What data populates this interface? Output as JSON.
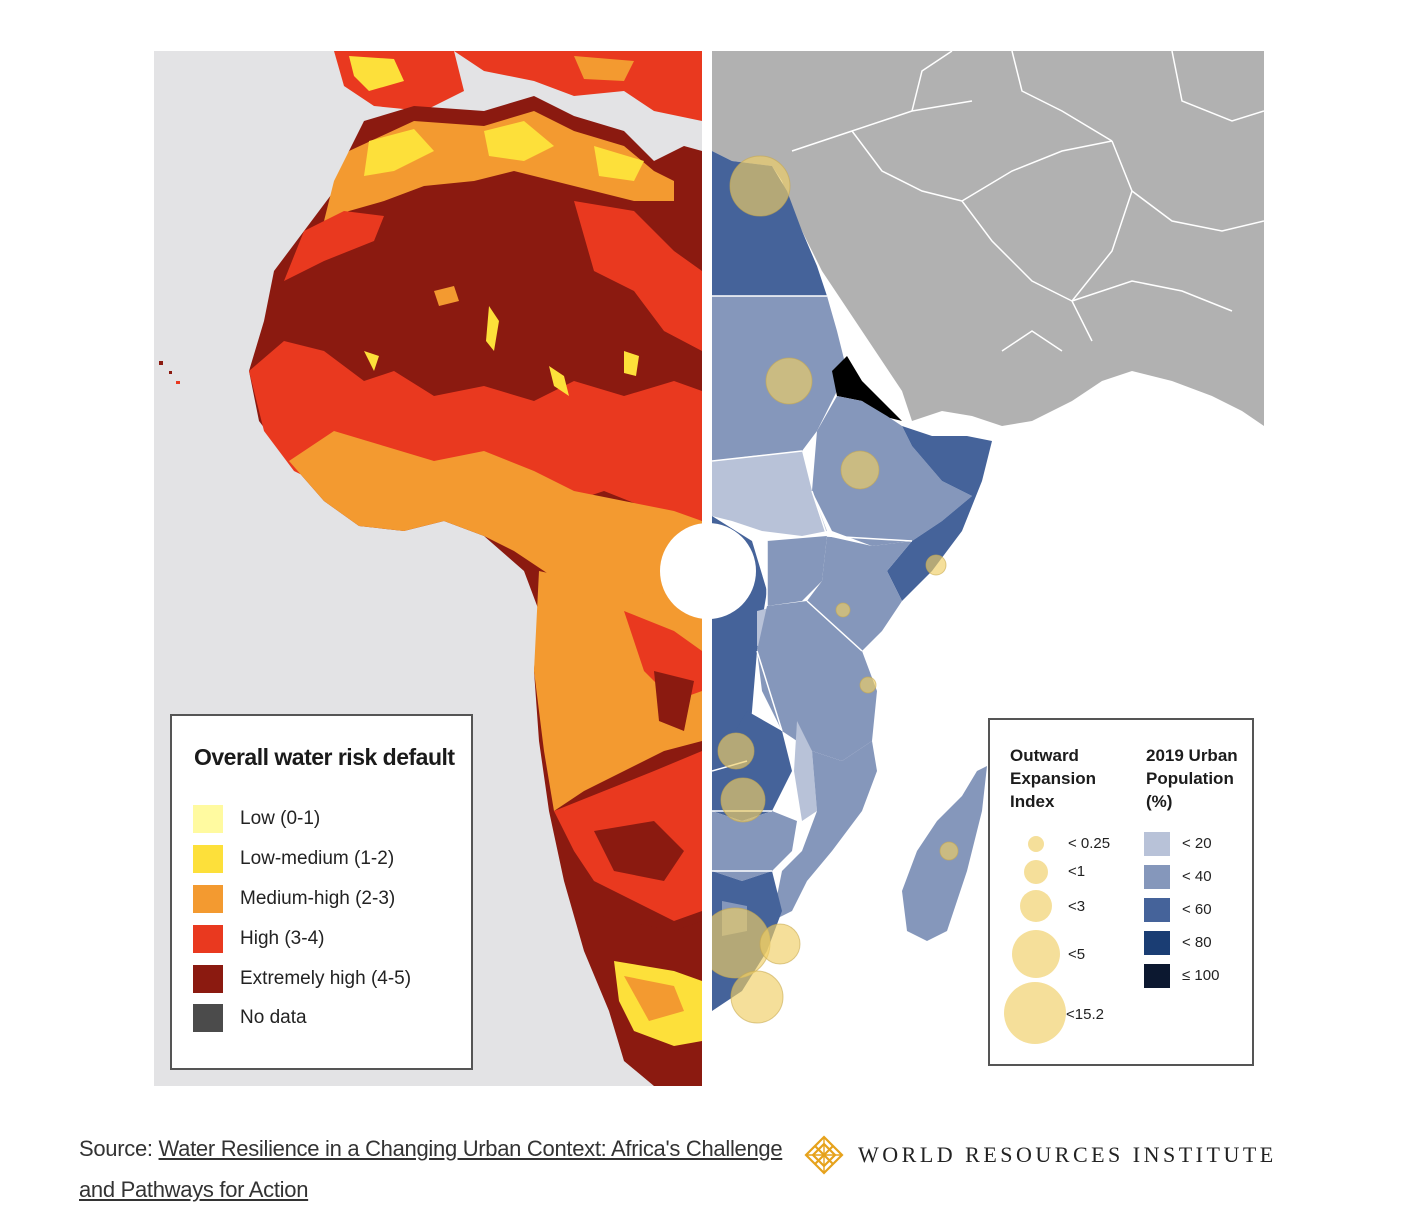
{
  "water_risk_legend": {
    "title": "Overall water risk default",
    "items": [
      {
        "label": "Low (0-1)",
        "color": "#fffaa0"
      },
      {
        "label": "Low-medium (1-2)",
        "color": "#fde03a"
      },
      {
        "label": "Medium-high (2-3)",
        "color": "#f39a30"
      },
      {
        "label": "High (3-4)",
        "color": "#e9391f"
      },
      {
        "label": "Extremely high (4-5)",
        "color": "#8b1a10"
      },
      {
        "label": "No data",
        "color": "#4b4b4b"
      }
    ]
  },
  "urban_legend": {
    "expansion_title": "Outward\nExpansion\nIndex",
    "population_title": "2019 Urban\nPopulation\n(%)",
    "expansion_items": [
      "< 0.25",
      "<1",
      "<3",
      "<5",
      "<15.2"
    ],
    "population_items": [
      {
        "label": "< 20",
        "color": "#b8c2d8"
      },
      {
        "label": "< 40",
        "color": "#8597bb"
      },
      {
        "label": "< 60",
        "color": "#45639a"
      },
      {
        "label": "< 80",
        "color": "#1a3d73"
      },
      {
        "label": "≤ 100",
        "color": "#0c1830"
      }
    ]
  },
  "colors": {
    "map_background_left": "#e3e3e5",
    "land_grey": "#b1b1b1",
    "bubble": "#f0ce64"
  },
  "source": {
    "prefix": "Source: ",
    "link_text": "Water Resilience in a Changing Urban Context:  Africa's Challenge and Pathways for Action"
  },
  "logo": {
    "text": "WORLD RESOURCES INSTITUTE"
  }
}
